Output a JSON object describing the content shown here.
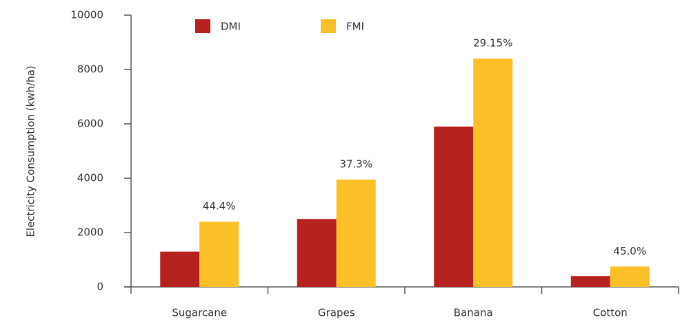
{
  "chart_data": {
    "type": "bar",
    "y_label": "Electricity Consumption (kwh/ha)",
    "categories": [
      "Sugarcane",
      "Grapes",
      "Banana",
      "Cotton"
    ],
    "series": [
      {
        "name": "DMI",
        "color": "#b5211f",
        "values": [
          1300,
          2500,
          5900,
          400
        ]
      },
      {
        "name": "FMI",
        "color": "#fbbf28",
        "values": [
          2400,
          3950,
          8400,
          750
        ]
      }
    ],
    "annotations": [
      "44.4%",
      "37.3%",
      "29.15%",
      "45.0%"
    ],
    "ylim": [
      0,
      10000
    ],
    "yticks": [
      0,
      2000,
      4000,
      6000,
      8000,
      10000
    ],
    "legend": "top"
  }
}
